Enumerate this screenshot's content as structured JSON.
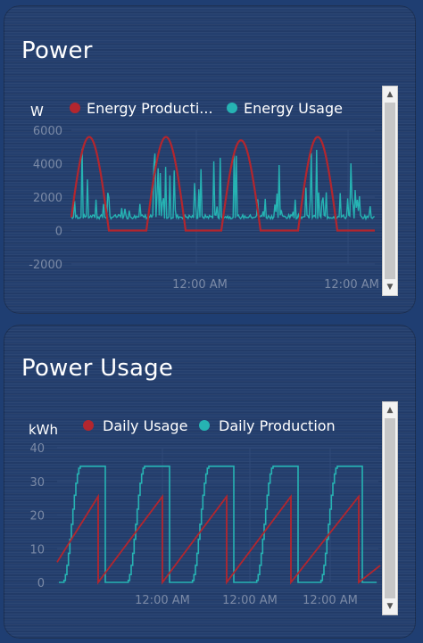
{
  "cards": {
    "power": {
      "title": "Power",
      "unit": "W",
      "legend": [
        {
          "label": "Energy Producti...",
          "color": "#b3262e"
        },
        {
          "label": "Energy Usage",
          "color": "#26b3b3"
        }
      ],
      "y_ticks": [
        "6000",
        "4000",
        "2000",
        "0",
        "-2000"
      ],
      "x_ticks": [
        "12:00 AM",
        "12:00 AM"
      ]
    },
    "usage": {
      "title": "Power Usage",
      "unit": "kWh",
      "legend": [
        {
          "label": "Daily Usage",
          "color": "#b3262e"
        },
        {
          "label": "Daily Production",
          "color": "#26b3b3"
        }
      ],
      "y_ticks": [
        "40",
        "30",
        "20",
        "10",
        "0"
      ],
      "x_ticks": [
        "12:00 AM",
        "12:00 AM",
        "12:00 AM"
      ]
    }
  },
  "chart_data": [
    {
      "type": "line",
      "ylabel": "W",
      "ylim": [
        -2000,
        6000
      ],
      "series": [
        {
          "name": "Energy Producti...",
          "color": "#b3262e",
          "peaks": [
            5600,
            5600,
            5400,
            5600
          ],
          "baseline": 0
        },
        {
          "name": "Energy Usage",
          "color": "#26b3b3",
          "baseline": 700,
          "spike_max": 5000
        }
      ],
      "x_tick_labels": [
        "12:00 AM",
        "12:00 AM"
      ]
    },
    {
      "type": "line",
      "ylabel": "kWh",
      "ylim": [
        0,
        40
      ],
      "series": [
        {
          "name": "Daily Usage",
          "color": "#b3262e",
          "daily_max": 25.5
        },
        {
          "name": "Daily Production",
          "color": "#26b3b3",
          "daily_max": 34.5
        }
      ],
      "x_tick_labels": [
        "12:00 AM",
        "12:00 AM",
        "12:00 AM"
      ]
    }
  ]
}
